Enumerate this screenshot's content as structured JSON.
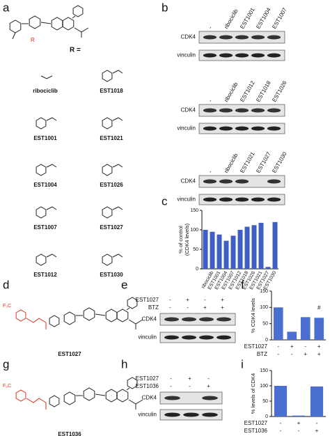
{
  "panel_labels": [
    "a",
    "b",
    "c",
    "d",
    "e",
    "f",
    "g",
    "h",
    "i"
  ],
  "panel_a": {
    "r_label": "R",
    "r_equals": "R =",
    "compounds": [
      "ribociclib",
      "EST1018",
      "EST1001",
      "EST1021",
      "EST1004",
      "EST1026",
      "EST1007",
      "EST1027",
      "EST1012",
      "EST1030"
    ]
  },
  "panel_b": {
    "blots": [
      {
        "lanes": [
          "-",
          "ribociclib",
          "EST1001",
          "EST1004",
          "EST1007"
        ],
        "rows": [
          "CDK4",
          "vinculin"
        ]
      },
      {
        "lanes": [
          "-",
          "ribociclib",
          "EST1012",
          "EST1018",
          "EST1026"
        ],
        "rows": [
          "CDK4",
          "vinculin"
        ]
      },
      {
        "lanes": [
          "-",
          "ribociclib",
          "EST1021",
          "EST1027",
          "EST1030"
        ],
        "rows": [
          "CDK4",
          "vinculin"
        ]
      }
    ]
  },
  "panel_d": {
    "substituent": "F₃C",
    "name": "EST1027"
  },
  "panel_e": {
    "conditions": [
      {
        "name": "EST1027",
        "signs": [
          "-",
          "+",
          "-",
          "+"
        ]
      },
      {
        "name": "BTZ",
        "signs": [
          "-",
          "-",
          "+",
          "+"
        ]
      }
    ],
    "rows": [
      "CDK4",
      "vinculin"
    ]
  },
  "panel_g": {
    "substituent": "F₃C",
    "name": "EST1036"
  },
  "panel_h": {
    "conditions": [
      {
        "name": "EST1027",
        "signs": [
          "-",
          "+",
          "-"
        ]
      },
      {
        "name": "EST1036",
        "signs": [
          "-",
          "-",
          "+"
        ]
      }
    ],
    "rows": [
      "CDK4",
      "vinculin"
    ]
  },
  "chart_data": [
    {
      "type": "bar",
      "ylabel": [
        "% of control",
        "(CDK4 levels)"
      ],
      "categories": [
        null,
        "ribociclib",
        "EST1001",
        "EST1004",
        "EST1007",
        "EST1012",
        "EST1018",
        "EST1026",
        "EST1021",
        "EST1027",
        "EST1030"
      ],
      "values": [
        100,
        95,
        88,
        72,
        85,
        100,
        108,
        112,
        118,
        5,
        120
      ],
      "ylim": [
        0,
        150
      ],
      "yticks": [
        0,
        50,
        100,
        150
      ],
      "color": "#3f5fc4"
    },
    {
      "type": "bar",
      "ylabel": [
        "% CDK4 levels"
      ],
      "values": [
        100,
        25,
        70,
        68
      ],
      "ylim": [
        0,
        150
      ],
      "yticks": [
        0,
        50,
        100,
        150
      ],
      "color": "#4a6fd0",
      "annotation": "#",
      "conditions": [
        {
          "name": "EST1027",
          "signs": [
            "-",
            "+",
            "-",
            "+"
          ]
        },
        {
          "name": "BTZ",
          "signs": [
            "-",
            "-",
            "+",
            "+"
          ]
        }
      ]
    },
    {
      "type": "bar",
      "ylabel": [
        "% levels of CDK4"
      ],
      "values": [
        100,
        3,
        98
      ],
      "ylim": [
        0,
        150
      ],
      "yticks": [
        0,
        50,
        100,
        150
      ],
      "color": "#4a6fd0",
      "conditions": [
        {
          "name": "EST1027",
          "signs": [
            "-",
            "+",
            "-"
          ]
        },
        {
          "name": "EST1036",
          "signs": [
            "-",
            "-",
            "+"
          ]
        }
      ]
    }
  ]
}
